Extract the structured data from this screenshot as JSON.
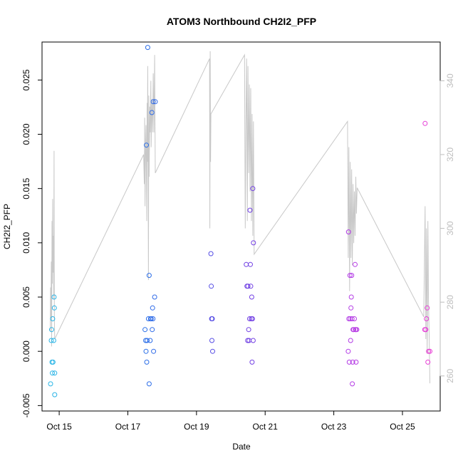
{
  "chart_data": {
    "type": "scatter",
    "title": "ATOM3 Northbound CH2I2_PFP",
    "xlabel": "Date",
    "ylabel": "CH2I2_PFP",
    "x_ticks": [
      "Oct 15",
      "Oct 17",
      "Oct 19",
      "Oct 21",
      "Oct 23",
      "Oct 25"
    ],
    "x_tick_days": [
      15,
      17,
      19,
      21,
      23,
      25
    ],
    "xlim": [
      14.5,
      26.1
    ],
    "ylim": [
      -0.0055,
      0.0285
    ],
    "y_ticks": [
      -0.005,
      0.0,
      0.005,
      0.01,
      0.015,
      0.02,
      0.025
    ],
    "y_tick_labels": [
      "-0.005",
      "0.000",
      "0.005",
      "0.010",
      "0.015",
      "0.020",
      "0.025"
    ],
    "y2lim": [
      250.5,
      350.5
    ],
    "y2_ticks": [
      260,
      280,
      300,
      320,
      340
    ],
    "y2_tick_labels": [
      "260",
      "280",
      "300",
      "320",
      "340"
    ],
    "colors": {
      "line": "#c8c8c8",
      "axis": "#000000",
      "right_axis": "#bdbdbd",
      "point_gradient": [
        "#29b6e6",
        "#2a6fe8",
        "#6a3fe3",
        "#a93ce8",
        "#e93fd6"
      ]
    },
    "scatter_points": [
      [
        14.75,
        -0.003
      ],
      [
        14.77,
        0.001
      ],
      [
        14.78,
        0.002
      ],
      [
        14.79,
        -0.001
      ],
      [
        14.8,
        -0.002
      ],
      [
        14.81,
        0.003
      ],
      [
        14.82,
        -0.001
      ],
      [
        14.84,
        0.001
      ],
      [
        14.85,
        0.005
      ],
      [
        14.86,
        0.004
      ],
      [
        14.87,
        -0.002
      ],
      [
        14.87,
        -0.004
      ],
      [
        17.5,
        0.002
      ],
      [
        17.52,
        0.001
      ],
      [
        17.53,
        0.0
      ],
      [
        17.54,
        0.019
      ],
      [
        17.55,
        -0.001
      ],
      [
        17.56,
        0.001
      ],
      [
        17.58,
        0.028
      ],
      [
        17.6,
        0.003
      ],
      [
        17.62,
        0.007
      ],
      [
        17.62,
        -0.003
      ],
      [
        17.65,
        0.001
      ],
      [
        17.66,
        0.003
      ],
      [
        17.68,
        0.003
      ],
      [
        17.7,
        0.022
      ],
      [
        17.71,
        0.002
      ],
      [
        17.72,
        0.004
      ],
      [
        17.73,
        0.003
      ],
      [
        17.74,
        0.023
      ],
      [
        17.75,
        0.0
      ],
      [
        17.78,
        0.005
      ],
      [
        17.8,
        0.023
      ],
      [
        19.42,
        0.009
      ],
      [
        19.43,
        0.006
      ],
      [
        19.44,
        0.003
      ],
      [
        19.45,
        0.001
      ],
      [
        19.46,
        0.003
      ],
      [
        19.47,
        0.0
      ],
      [
        20.45,
        0.008
      ],
      [
        20.47,
        0.006
      ],
      [
        20.49,
        0.001
      ],
      [
        20.5,
        0.006
      ],
      [
        20.52,
        0.002
      ],
      [
        20.53,
        0.001
      ],
      [
        20.55,
        0.003
      ],
      [
        20.56,
        0.013
      ],
      [
        20.57,
        0.008
      ],
      [
        20.58,
        0.006
      ],
      [
        20.6,
        0.003
      ],
      [
        20.61,
        0.005
      ],
      [
        20.62,
        -0.001
      ],
      [
        20.63,
        0.003
      ],
      [
        20.64,
        0.015
      ],
      [
        20.65,
        0.001
      ],
      [
        20.66,
        0.01
      ],
      [
        23.42,
        0.0
      ],
      [
        23.43,
        0.011
      ],
      [
        23.44,
        0.003
      ],
      [
        23.45,
        -0.001
      ],
      [
        23.47,
        0.007
      ],
      [
        23.48,
        0.003
      ],
      [
        23.49,
        0.001
      ],
      [
        23.5,
        0.004
      ],
      [
        23.51,
        0.005
      ],
      [
        23.52,
        0.007
      ],
      [
        23.53,
        0.003
      ],
      [
        23.54,
        -0.003
      ],
      [
        23.55,
        -0.001
      ],
      [
        23.56,
        0.002
      ],
      [
        23.58,
        0.002
      ],
      [
        23.6,
        0.003
      ],
      [
        23.62,
        0.008
      ],
      [
        23.63,
        0.002
      ],
      [
        23.64,
        0.002
      ],
      [
        23.65,
        -0.001
      ],
      [
        23.67,
        0.002
      ],
      [
        25.65,
        0.002
      ],
      [
        25.66,
        0.021
      ],
      [
        25.68,
        0.002
      ],
      [
        25.7,
        0.003
      ],
      [
        25.72,
        0.004
      ],
      [
        25.74,
        -0.001
      ],
      [
        25.76,
        0.0
      ],
      [
        25.8,
        0.0
      ]
    ],
    "line_points": [
      [
        14.74,
        272
      ],
      [
        14.75,
        284
      ],
      [
        14.76,
        276
      ],
      [
        14.77,
        291
      ],
      [
        14.78,
        268
      ],
      [
        14.79,
        302
      ],
      [
        14.8,
        285
      ],
      [
        14.81,
        308
      ],
      [
        14.82,
        288
      ],
      [
        14.83,
        298
      ],
      [
        14.84,
        281
      ],
      [
        14.85,
        321
      ],
      [
        14.86,
        276
      ],
      [
        14.87,
        270
      ],
      [
        17.46,
        320
      ],
      [
        17.48,
        312
      ],
      [
        17.49,
        330
      ],
      [
        17.5,
        306
      ],
      [
        17.52,
        324
      ],
      [
        17.53,
        328
      ],
      [
        17.55,
        302
      ],
      [
        17.56,
        334
      ],
      [
        17.57,
        318
      ],
      [
        17.58,
        344
      ],
      [
        17.6,
        286
      ],
      [
        17.61,
        336
      ],
      [
        17.62,
        314
      ],
      [
        17.64,
        333
      ],
      [
        17.65,
        326
      ],
      [
        17.67,
        340
      ],
      [
        17.68,
        322
      ],
      [
        17.7,
        335
      ],
      [
        17.72,
        326
      ],
      [
        17.74,
        342
      ],
      [
        17.76,
        326
      ],
      [
        17.78,
        347
      ],
      [
        17.8,
        315
      ],
      [
        19.38,
        346
      ],
      [
        19.39,
        300
      ],
      [
        19.4,
        348
      ],
      [
        19.41,
        318
      ],
      [
        19.42,
        331
      ],
      [
        20.4,
        347
      ],
      [
        20.42,
        300
      ],
      [
        20.44,
        328
      ],
      [
        20.46,
        346
      ],
      [
        20.48,
        302
      ],
      [
        20.5,
        344
      ],
      [
        20.52,
        315
      ],
      [
        20.54,
        339
      ],
      [
        20.56,
        310
      ],
      [
        20.58,
        338
      ],
      [
        20.6,
        302
      ],
      [
        20.62,
        331
      ],
      [
        20.64,
        298
      ],
      [
        20.66,
        329
      ],
      [
        20.68,
        293
      ],
      [
        23.4,
        329
      ],
      [
        23.42,
        292
      ],
      [
        23.44,
        322
      ],
      [
        23.46,
        283
      ],
      [
        23.48,
        318
      ],
      [
        23.5,
        292
      ],
      [
        23.52,
        316
      ],
      [
        23.54,
        290
      ],
      [
        23.56,
        312
      ],
      [
        23.58,
        296
      ],
      [
        23.6,
        310
      ],
      [
        23.62,
        298
      ],
      [
        23.64,
        314
      ],
      [
        23.66,
        304
      ],
      [
        23.68,
        311
      ],
      [
        25.62,
        276
      ],
      [
        25.64,
        290
      ],
      [
        25.66,
        306
      ],
      [
        25.68,
        270
      ],
      [
        25.7,
        300
      ],
      [
        25.72,
        266
      ],
      [
        25.74,
        302
      ],
      [
        25.76,
        280
      ],
      [
        25.78,
        270
      ],
      [
        25.8,
        258
      ]
    ]
  }
}
